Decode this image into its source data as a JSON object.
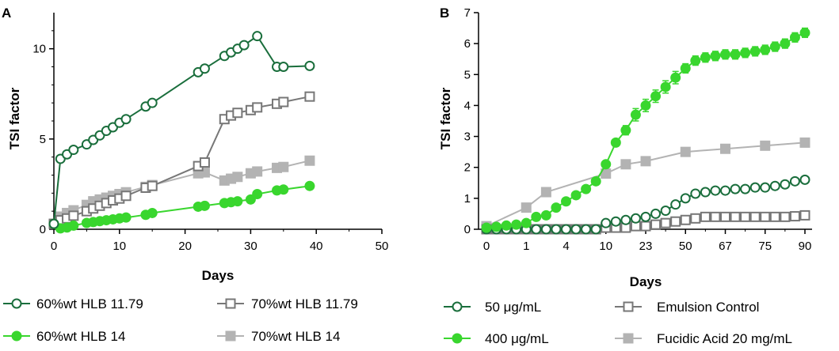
{
  "chart_data": [
    {
      "panel": "A",
      "type": "line",
      "xlabel": "Days",
      "ylabel": "TSI factor",
      "xlim": [
        0,
        50
      ],
      "ylim": [
        0,
        12
      ],
      "xticks": [
        "0",
        "10",
        "20",
        "30",
        "40",
        "50"
      ],
      "yticks": [
        "0",
        "5",
        "10"
      ],
      "legend_position": "bottom",
      "series": [
        {
          "name": "60%wt HLB 11.79",
          "color": "#1a6e3c",
          "marker": "open-circle",
          "x": [
            0,
            1,
            2,
            3,
            5,
            6,
            7,
            8,
            9,
            10,
            11,
            14,
            15,
            22,
            23,
            26,
            27,
            28,
            29,
            31,
            34,
            35,
            39
          ],
          "y": [
            0.3,
            3.9,
            4.15,
            4.4,
            4.7,
            4.95,
            5.2,
            5.45,
            5.65,
            5.9,
            6.1,
            6.8,
            7.0,
            8.7,
            8.9,
            9.6,
            9.8,
            10.0,
            10.2,
            10.7,
            9.0,
            9.0,
            9.05
          ]
        },
        {
          "name": "70%wt HLB 11.79",
          "color": "#777777",
          "marker": "open-square",
          "x": [
            0,
            1,
            2,
            3,
            5,
            6,
            7,
            8,
            9,
            10,
            11,
            14,
            15,
            22,
            23,
            26,
            27,
            28,
            30,
            31,
            34,
            35,
            39
          ],
          "y": [
            0.3,
            0.5,
            0.6,
            0.75,
            1.0,
            1.15,
            1.3,
            1.45,
            1.6,
            1.7,
            1.85,
            2.3,
            2.4,
            3.5,
            3.7,
            6.1,
            6.3,
            6.45,
            6.6,
            6.75,
            6.95,
            7.05,
            7.35
          ]
        },
        {
          "name": "60%wt HLB 14",
          "color": "#39d62e",
          "marker": "filled-circle",
          "x": [
            0,
            1,
            2,
            3,
            5,
            6,
            7,
            8,
            9,
            10,
            11,
            14,
            15,
            22,
            23,
            26,
            27,
            28,
            30,
            31,
            34,
            35,
            39
          ],
          "y": [
            0.3,
            0.05,
            0.1,
            0.2,
            0.35,
            0.4,
            0.45,
            0.5,
            0.55,
            0.6,
            0.65,
            0.8,
            0.9,
            1.25,
            1.3,
            1.45,
            1.5,
            1.55,
            1.65,
            1.95,
            2.15,
            2.2,
            2.4
          ]
        },
        {
          "name": "70%wt HLB 14",
          "color": "#b3b3b3",
          "marker": "filled-square",
          "x": [
            0,
            1,
            2,
            3,
            5,
            6,
            7,
            8,
            9,
            10,
            11,
            14,
            15,
            22,
            23,
            26,
            27,
            28,
            30,
            31,
            34,
            35,
            39
          ],
          "y": [
            0.3,
            0.7,
            0.9,
            1.05,
            1.35,
            1.55,
            1.65,
            1.75,
            1.85,
            1.95,
            2.05,
            2.35,
            2.45,
            3.1,
            3.15,
            2.7,
            2.8,
            2.9,
            3.1,
            3.2,
            3.4,
            3.45,
            3.8
          ]
        }
      ]
    },
    {
      "panel": "B",
      "type": "line",
      "xlabel": "Days",
      "ylabel": "TSI factor",
      "ylim": [
        0,
        7
      ],
      "categories": [
        "0",
        "1",
        "4",
        "10",
        "23",
        "50",
        "67",
        "75",
        "90"
      ],
      "yticks": [
        "0",
        "1",
        "2",
        "3",
        "4",
        "5",
        "6",
        "7"
      ],
      "legend_position": "bottom",
      "series": [
        {
          "name": "50 μg/mL",
          "color": "#1a6e3c",
          "marker": "open-circle",
          "x": [
            0,
            0.5,
            1,
            1.5,
            2,
            2.5,
            3,
            3.5,
            4,
            4.5,
            5,
            5.5,
            6,
            6.5,
            7,
            7.5,
            8,
            8.5,
            9,
            9.5,
            10,
            10.5,
            11,
            11.5,
            12,
            12.5,
            13,
            13.5,
            14,
            14.5,
            15,
            15.5,
            16
          ],
          "y": [
            0,
            0,
            0,
            0,
            0,
            0,
            0,
            0,
            0,
            0,
            0,
            0,
            0.2,
            0.25,
            0.3,
            0.35,
            0.4,
            0.5,
            0.6,
            0.8,
            1.0,
            1.15,
            1.2,
            1.25,
            1.25,
            1.3,
            1.3,
            1.35,
            1.35,
            1.4,
            1.45,
            1.55,
            1.6
          ]
        },
        {
          "name": "400 μg/mL",
          "color": "#39d62e",
          "marker": "filled-circle",
          "x": [
            0,
            0.5,
            1,
            1.5,
            2,
            2.5,
            3,
            3.5,
            4,
            4.5,
            5,
            5.5,
            6,
            6.5,
            7,
            7.5,
            8,
            8.5,
            9,
            9.5,
            10,
            10.5,
            11,
            11.5,
            12,
            12.5,
            13,
            13.5,
            14,
            14.5,
            15,
            15.5,
            16
          ],
          "y": [
            0.05,
            0.08,
            0.12,
            0.15,
            0.2,
            0.4,
            0.45,
            0.7,
            0.9,
            1.1,
            1.3,
            1.55,
            2.1,
            2.8,
            3.2,
            3.7,
            4.0,
            4.3,
            4.6,
            4.9,
            5.2,
            5.45,
            5.55,
            5.6,
            5.65,
            5.65,
            5.7,
            5.75,
            5.8,
            5.9,
            6.0,
            6.2,
            6.35
          ],
          "err": [
            0,
            0,
            0,
            0,
            0,
            0,
            0,
            0,
            0,
            0,
            0,
            0,
            0.05,
            0.1,
            0.15,
            0.2,
            0.2,
            0.2,
            0.2,
            0.2,
            0.15,
            0.15,
            0.15,
            0.15,
            0.15,
            0.15,
            0.15,
            0.15,
            0.15,
            0.15,
            0.15,
            0.15,
            0.15
          ]
        },
        {
          "name": "Emulsion Control",
          "color": "#777777",
          "marker": "open-square",
          "x": [
            0,
            0.5,
            1,
            1.5,
            2,
            2.5,
            3,
            3.5,
            4,
            4.5,
            5,
            5.5,
            6,
            6.5,
            7,
            7.5,
            8,
            8.5,
            9,
            9.5,
            10,
            10.5,
            11,
            11.5,
            12,
            12.5,
            13,
            13.5,
            14,
            14.5,
            15,
            15.5,
            16
          ],
          "y": [
            0,
            0,
            0,
            0,
            0,
            0,
            0,
            0,
            0,
            0,
            0,
            0,
            0.05,
            0.05,
            0.05,
            0.1,
            0.1,
            0.15,
            0.2,
            0.25,
            0.3,
            0.35,
            0.4,
            0.4,
            0.4,
            0.4,
            0.4,
            0.4,
            0.4,
            0.4,
            0.4,
            0.42,
            0.45
          ]
        },
        {
          "name": "Fucidic Acid 20 mg/mL",
          "color": "#b3b3b3",
          "marker": "filled-square",
          "x": [
            0,
            2,
            3,
            6,
            7,
            8,
            10,
            12,
            14,
            16
          ],
          "y": [
            0.1,
            0.7,
            1.2,
            1.8,
            2.1,
            2.2,
            2.5,
            2.6,
            2.7,
            2.8
          ]
        }
      ]
    }
  ]
}
